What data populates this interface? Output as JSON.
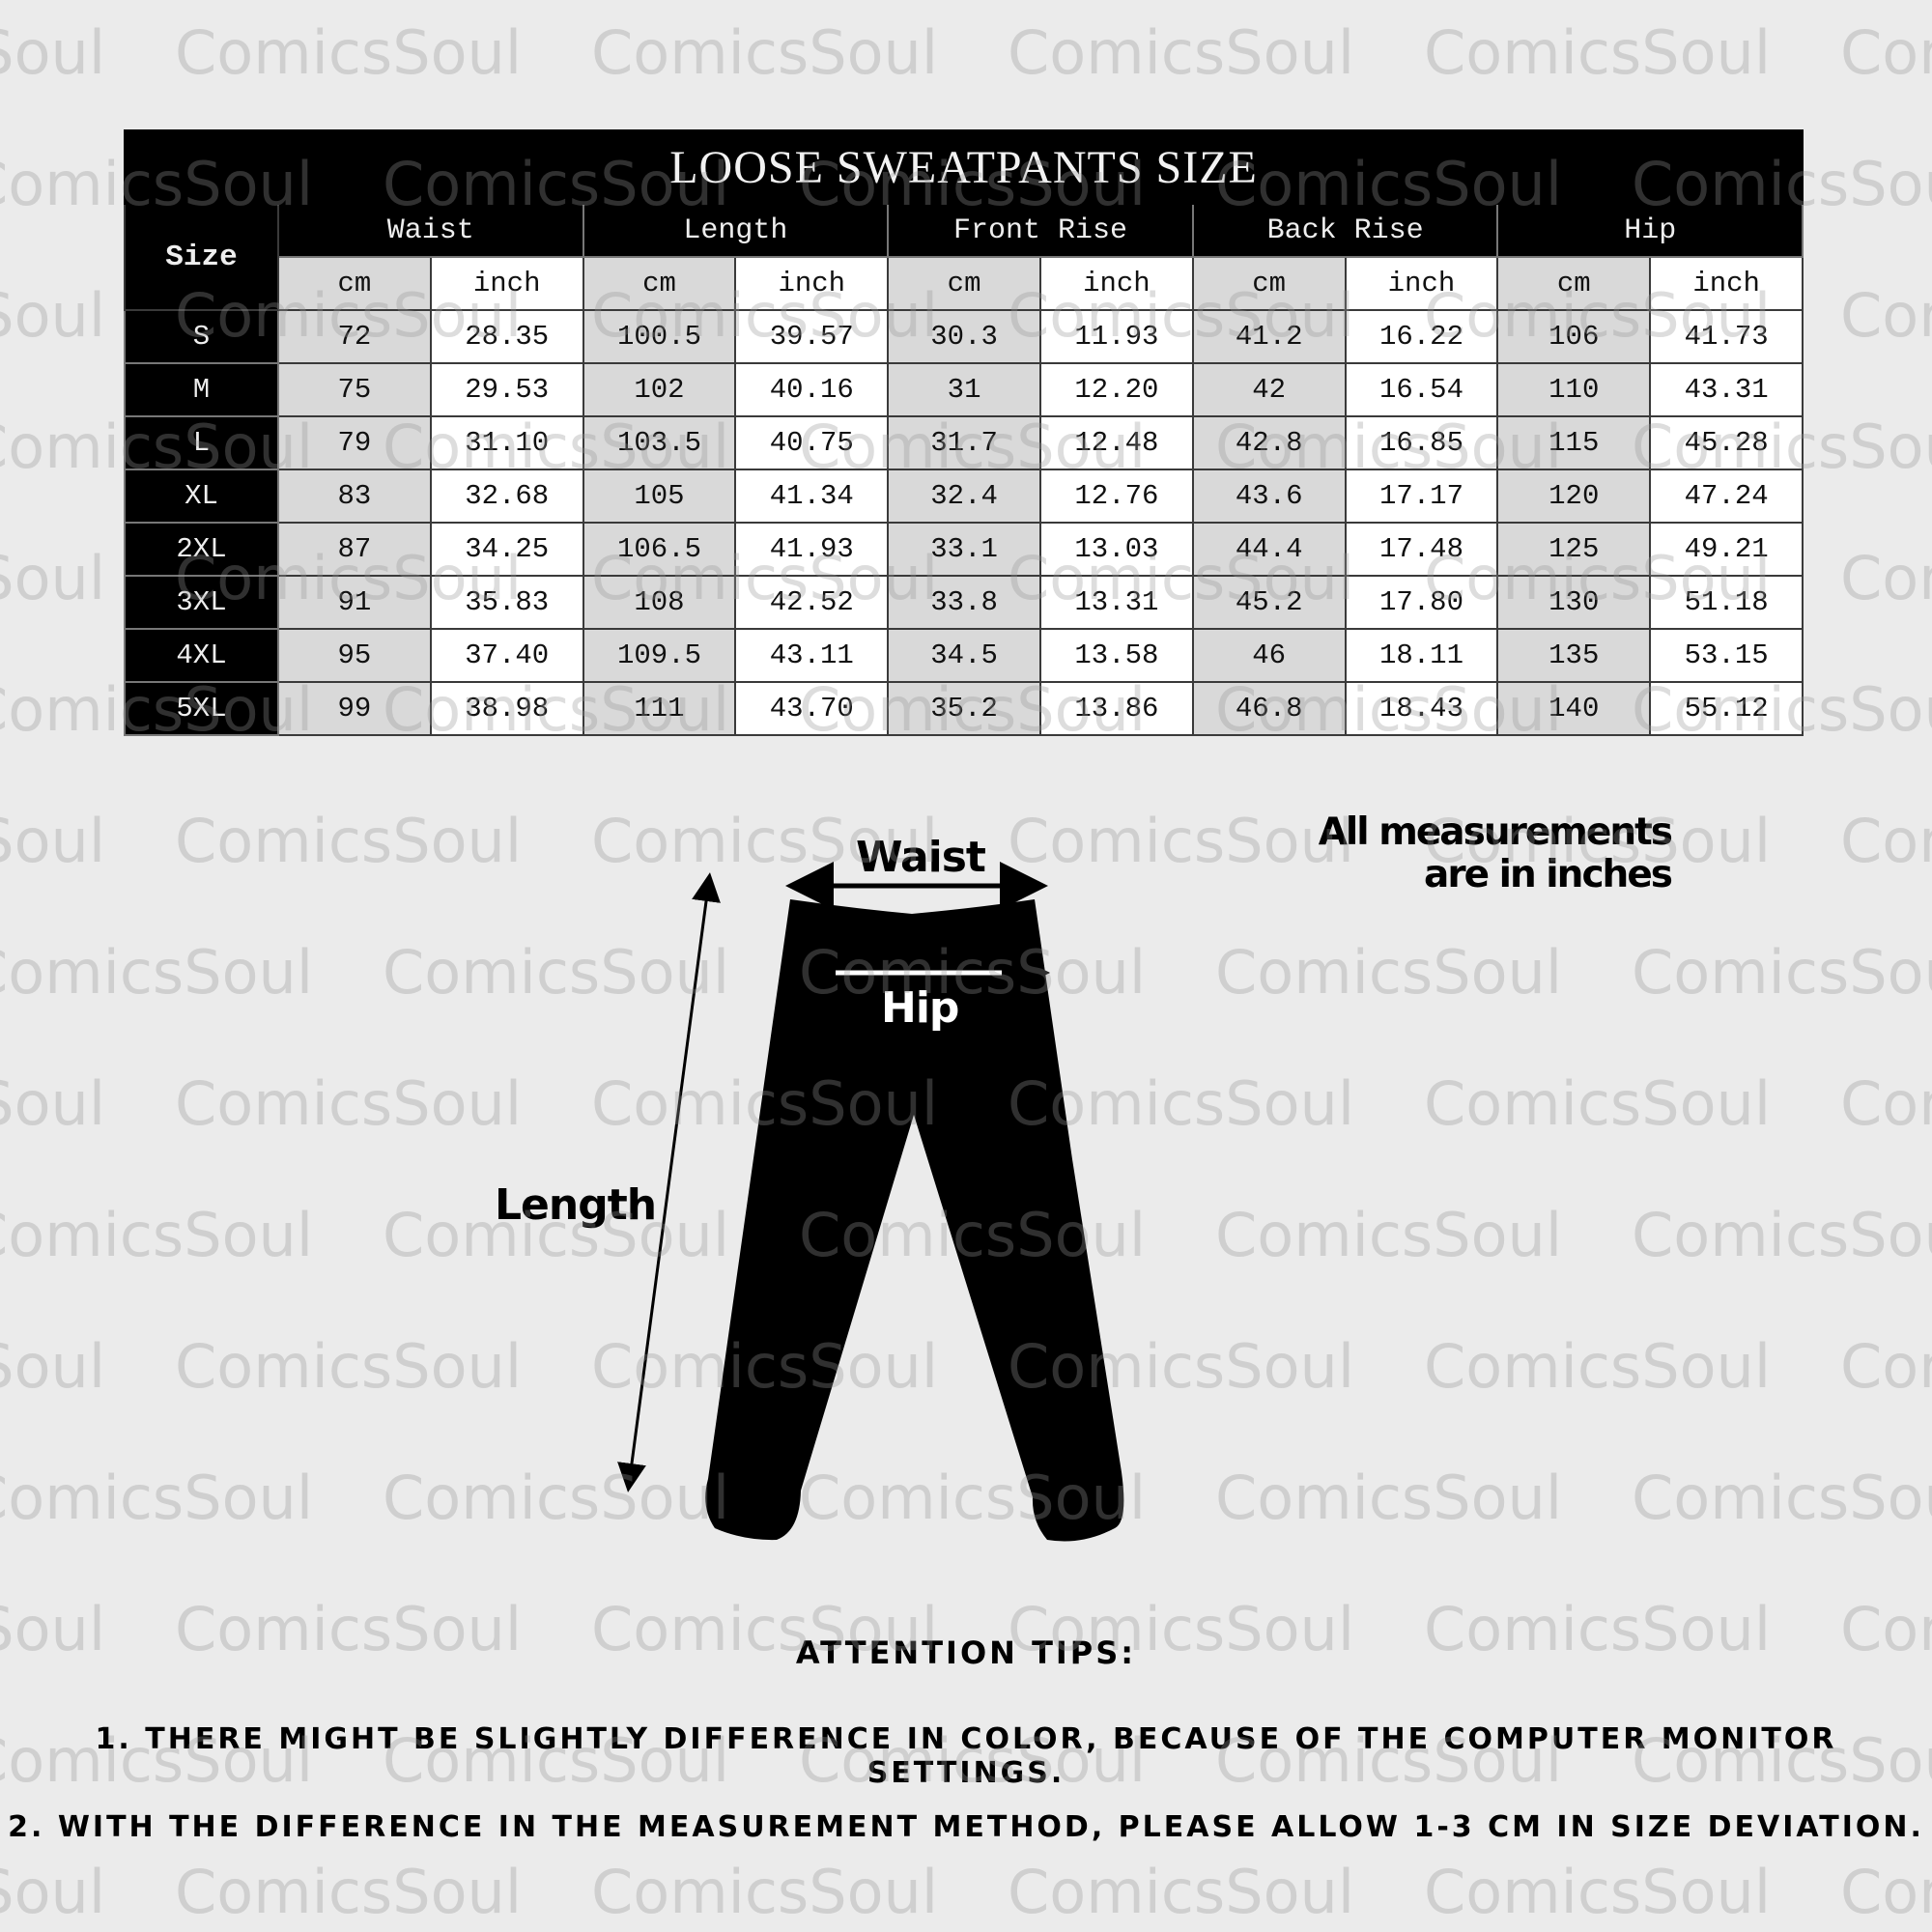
{
  "watermark": "ComicsSoul",
  "table": {
    "title": "LOOSE SWEATPANTS SIZE",
    "size_header": "Size",
    "groups": [
      "Waist",
      "Length",
      "Front Rise",
      "Back Rise",
      "Hip"
    ],
    "units": [
      "cm",
      "inch"
    ],
    "rows": [
      {
        "size": "S",
        "values": [
          "72",
          "28.35",
          "100.5",
          "39.57",
          "30.3",
          "11.93",
          "41.2",
          "16.22",
          "106",
          "41.73"
        ]
      },
      {
        "size": "M",
        "values": [
          "75",
          "29.53",
          "102",
          "40.16",
          "31",
          "12.20",
          "42",
          "16.54",
          "110",
          "43.31"
        ]
      },
      {
        "size": "L",
        "values": [
          "79",
          "31.10",
          "103.5",
          "40.75",
          "31.7",
          "12.48",
          "42.8",
          "16.85",
          "115",
          "45.28"
        ]
      },
      {
        "size": "XL",
        "values": [
          "83",
          "32.68",
          "105",
          "41.34",
          "32.4",
          "12.76",
          "43.6",
          "17.17",
          "120",
          "47.24"
        ]
      },
      {
        "size": "2XL",
        "values": [
          "87",
          "34.25",
          "106.5",
          "41.93",
          "33.1",
          "13.03",
          "44.4",
          "17.48",
          "125",
          "49.21"
        ]
      },
      {
        "size": "3XL",
        "values": [
          "91",
          "35.83",
          "108",
          "42.52",
          "33.8",
          "13.31",
          "45.2",
          "17.80",
          "130",
          "51.18"
        ]
      },
      {
        "size": "4XL",
        "values": [
          "95",
          "37.40",
          "109.5",
          "43.11",
          "34.5",
          "13.58",
          "46",
          "18.11",
          "135",
          "53.15"
        ]
      },
      {
        "size": "5XL",
        "values": [
          "99",
          "38.98",
          "111",
          "43.70",
          "35.2",
          "13.86",
          "46.8",
          "18.43",
          "140",
          "55.12"
        ]
      }
    ]
  },
  "diagram": {
    "waist_label": "Waist",
    "hip_label": "Hip",
    "length_label": "Length",
    "note_line1": "All measurements",
    "note_line2": "are in inches"
  },
  "tips": {
    "heading": "ATTENTION TIPS:",
    "line1": "1. THERE MIGHT BE SLIGHTLY DIFFERENCE IN COLOR, BECAUSE OF THE COMPUTER MONITOR SETTINGS.",
    "line2": "2. WITH THE DIFFERENCE IN THE MEASUREMENT METHOD, PLEASE ALLOW 1-3 CM IN SIZE DEVIATION."
  },
  "colors": {
    "background": "#ebebeb",
    "header": "#000000",
    "cm_cell": "#d9d9d9",
    "inch_cell": "#ffffff"
  }
}
